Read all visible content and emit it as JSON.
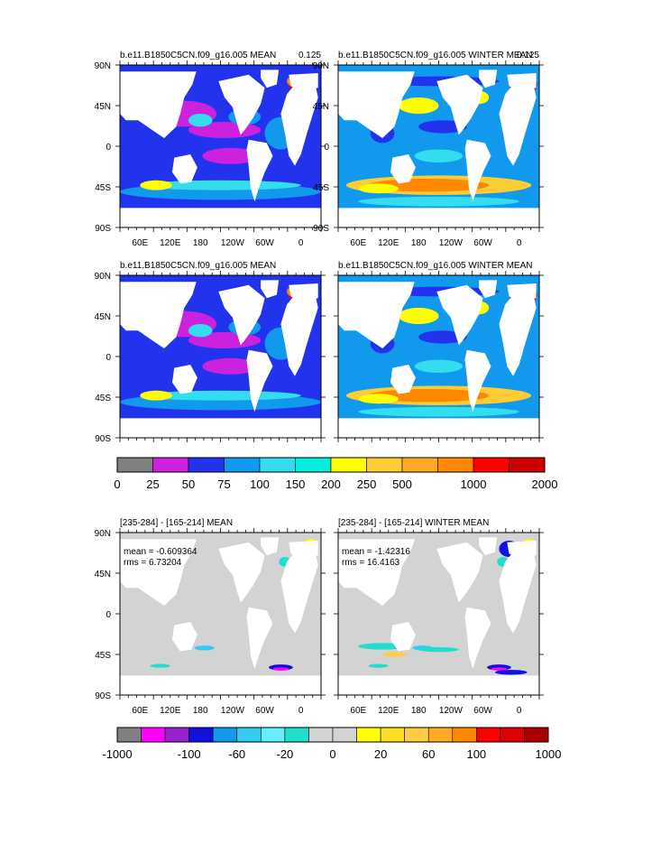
{
  "chart_data": {
    "type": "heatmap",
    "description_fields": "multi-panel ocean map figure",
    "panels": [
      {
        "title": "b.e11.B1850C5CN.f09_g16.005 MEAN",
        "corner_label": "0.125",
        "season": "annual",
        "yticks": [
          "90N",
          "45N",
          "0",
          "45S",
          "90S"
        ],
        "xticks": [
          "60E",
          "120E",
          "180",
          "120W",
          "60W",
          "0"
        ],
        "regime": "mean"
      },
      {
        "title": "b.e11.B1850C5CN.f09_g16.005 WINTER MEAN",
        "corner_label": "0.125",
        "season": "winter",
        "yticks": [
          "90N",
          "45N",
          "0",
          "45S",
          "90S"
        ],
        "xticks": [
          "60E",
          "120E",
          "180",
          "120W",
          "60W",
          "0"
        ],
        "regime": "winter"
      },
      {
        "title": "b.e11.B1850C5CN.f09_g16.005 MEAN",
        "corner_label": "",
        "season": "annual",
        "yticks": [
          "90N",
          "45N",
          "0",
          "45S",
          "90S"
        ],
        "xticks": [],
        "regime": "mean"
      },
      {
        "title": "b.e11.B1850C5CN.f09_g16.005 WINTER MEAN",
        "corner_label": "",
        "season": "winter",
        "yticks": [],
        "xticks": [],
        "regime": "winter"
      },
      {
        "title": "[235-284] - [165-214] MEAN",
        "corner_label": "",
        "season": "annual",
        "yticks": [
          "90N",
          "45N",
          "0",
          "45S",
          "90S"
        ],
        "xticks": [
          "60E",
          "120E",
          "180",
          "120W",
          "60W",
          "0"
        ],
        "regime": "diff",
        "stats": [
          "mean = -0.609364",
          "rms = 6.73204"
        ]
      },
      {
        "title": "[235-284] - [165-214] WINTER MEAN",
        "corner_label": "",
        "season": "winter",
        "yticks": [],
        "xticks": [
          "60E",
          "120E",
          "180",
          "120W",
          "60W",
          "0"
        ],
        "regime": "diff",
        "stats": [
          "mean = -1.42316",
          "rms = 16.4163"
        ]
      }
    ],
    "colorbar_top": {
      "colors": [
        "#808080",
        "#cc22dd",
        "#2233ee",
        "#1199ee",
        "#33ddee",
        "#00eedd",
        "#ffff00",
        "#ffcc33",
        "#ffaa22",
        "#ff8800",
        "#ff0000",
        "#cc0000"
      ],
      "labels": [
        "0",
        "25",
        "50",
        "75",
        "100",
        "150",
        "200",
        "250",
        "500",
        "1000",
        "2000"
      ]
    },
    "colorbar_bottom": {
      "colors": [
        "#808080",
        "#ff00ff",
        "#9922cc",
        "#1111dd",
        "#1199ee",
        "#33ccee",
        "#66eeff",
        "#22ddcc",
        "#d3d3d3",
        "#d3d3d3",
        "#ffff00",
        "#ffdd22",
        "#ffcc44",
        "#ffaa22",
        "#ff8800",
        "#ff0000",
        "#dd0000",
        "#aa0000"
      ],
      "labels": [
        "-1000",
        "-100",
        "-60",
        "-20",
        "0",
        "20",
        "60",
        "100",
        "1000"
      ]
    }
  }
}
